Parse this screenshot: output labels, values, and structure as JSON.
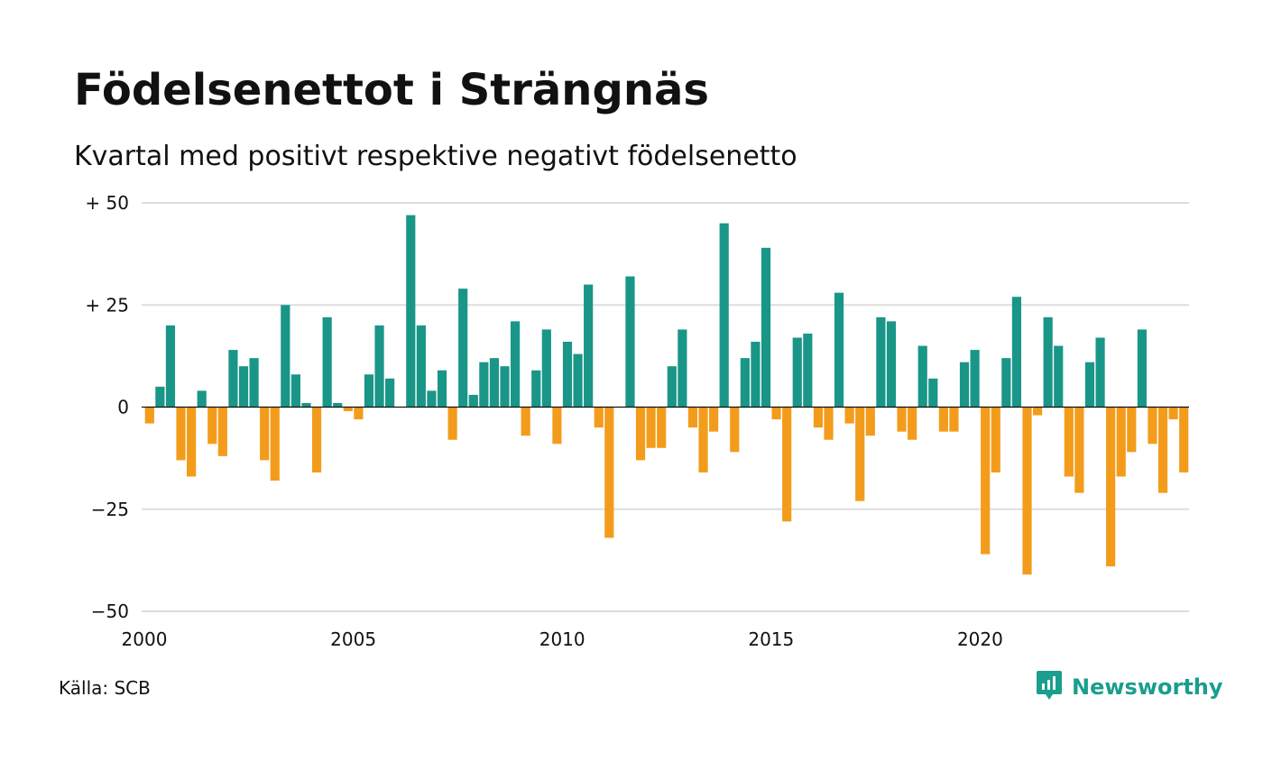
{
  "page": {
    "title": "Födelsenettot i Strängnäs",
    "subtitle": "Kvartal med positivt respektive negativt födelsenetto",
    "source": "Källa: SCB",
    "brand": "Newsworthy"
  },
  "colors": {
    "positive": "#1a9688",
    "negative": "#f39c1c",
    "grid": "#dddddd",
    "brand": "#1a9e8d"
  },
  "icons": {
    "logo": "newsworthy-logo-icon"
  },
  "chart_data": {
    "type": "bar",
    "title": "Födelsenettot i Strängnäs",
    "subtitle": "Kvartal med positivt respektive negativt födelsenetto",
    "xlabel": "",
    "ylabel": "",
    "ylim": [
      -50,
      50
    ],
    "yticks": [
      {
        "value": 50,
        "label": "+ 50"
      },
      {
        "value": 25,
        "label": "+ 25"
      },
      {
        "value": 0,
        "label": "0"
      },
      {
        "value": -25,
        "label": "−25"
      },
      {
        "value": -50,
        "label": "−50"
      }
    ],
    "xticks": [
      {
        "year": 2000,
        "label": "2000"
      },
      {
        "year": 2005,
        "label": "2005"
      },
      {
        "year": 2010,
        "label": "2010"
      },
      {
        "year": 2015,
        "label": "2015"
      },
      {
        "year": 2020,
        "label": "2020"
      }
    ],
    "start_year": 2000,
    "grid": true,
    "legend": "none",
    "values": [
      -4,
      5,
      20,
      -13,
      -17,
      4,
      -9,
      -12,
      14,
      10,
      12,
      -13,
      -18,
      25,
      8,
      1,
      -16,
      22,
      1,
      -1,
      -3,
      8,
      20,
      7,
      0,
      47,
      20,
      4,
      9,
      -8,
      29,
      3,
      11,
      12,
      10,
      21,
      -7,
      9,
      19,
      -9,
      16,
      13,
      30,
      -5,
      -32,
      0,
      32,
      -13,
      -10,
      -10,
      10,
      19,
      -5,
      -16,
      -6,
      45,
      -11,
      12,
      16,
      39,
      -3,
      -28,
      17,
      18,
      -5,
      -8,
      28,
      -4,
      -23,
      -7,
      22,
      21,
      -6,
      -8,
      15,
      7,
      -6,
      -6,
      11,
      14,
      -36,
      -16,
      12,
      27,
      -41,
      -2,
      22,
      15,
      -17,
      -21,
      11,
      17,
      -39,
      -17,
      -11,
      19,
      -9,
      -21,
      -3,
      -16
    ]
  }
}
